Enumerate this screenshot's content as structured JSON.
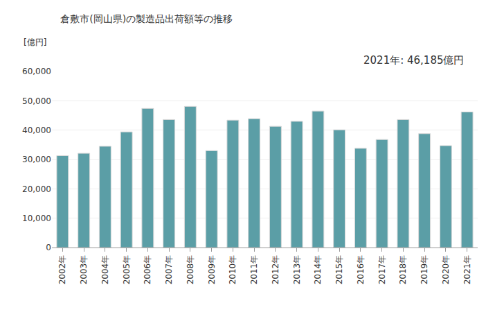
{
  "chart_data": {
    "type": "bar",
    "title": "倉敷市(岡山県)の製造品出荷額等の推移",
    "y_label": "[億円]",
    "annotation": "2021年: 46,185億円",
    "categories": [
      "2002年",
      "2003年",
      "2004年",
      "2005年",
      "2006年",
      "2007年",
      "2008年",
      "2009年",
      "2010年",
      "2011年",
      "2012年",
      "2013年",
      "2014年",
      "2015年",
      "2016年",
      "2017年",
      "2018年",
      "2019年",
      "2020年",
      "2021年"
    ],
    "values": [
      31300,
      32100,
      34500,
      39400,
      47400,
      43600,
      48100,
      33000,
      43400,
      43900,
      41300,
      43000,
      46500,
      40100,
      33800,
      36800,
      43600,
      38800,
      34700,
      46185
    ],
    "color": "#5b9ea6",
    "ylim": [
      0,
      60000
    ],
    "yticks": [
      0,
      {
        "value": 10000,
        "label": "10,000"
      },
      {
        "value": 20000,
        "label": "20,000"
      },
      {
        "value": 30000,
        "label": "30,000"
      },
      {
        "value": 40000,
        "label": "40,000"
      },
      {
        "value": 50000,
        "label": "50,000"
      },
      {
        "value": 60000,
        "label": "60,000"
      }
    ],
    "grid": true
  }
}
